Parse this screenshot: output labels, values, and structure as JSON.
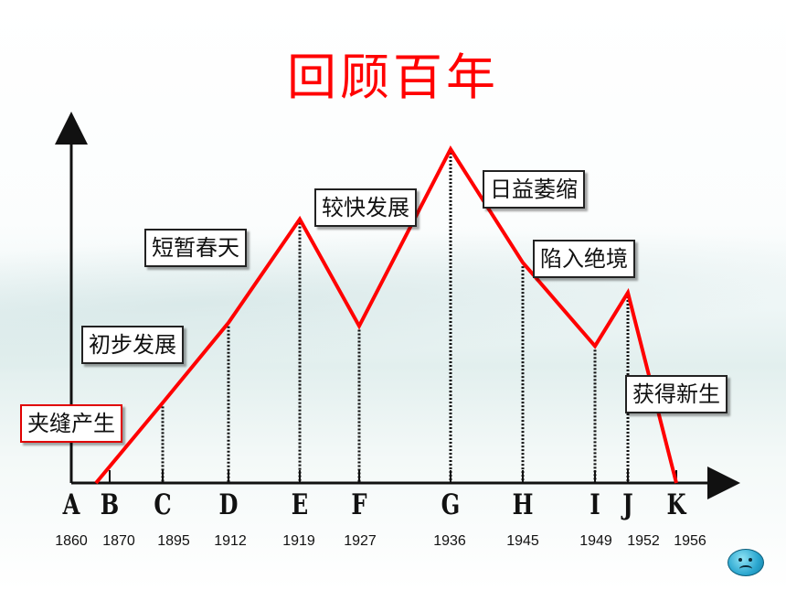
{
  "title": "回顾百年",
  "timeline": [
    {
      "letter": "A",
      "year": "1860",
      "level": 0
    },
    {
      "letter": "B",
      "year": "1870",
      "level": 0.03
    },
    {
      "letter": "C",
      "year": "1895",
      "level": 0.24
    },
    {
      "letter": "D",
      "year": "1912",
      "level": 0.48
    },
    {
      "letter": "E",
      "year": "1919",
      "level": 0.79
    },
    {
      "letter": "F",
      "year": "1927",
      "level": 0.47
    },
    {
      "letter": "G",
      "year": "1936",
      "level": 1.0
    },
    {
      "letter": "H",
      "year": "1945",
      "level": 0.66
    },
    {
      "letter": "I",
      "year": "1949",
      "level": 0.41
    },
    {
      "letter": "J",
      "year": "1952",
      "level": 0.57
    },
    {
      "letter": "K",
      "year": "1956",
      "level": 0
    }
  ],
  "labels": [
    {
      "text": "夹缝产生",
      "style": "red"
    },
    {
      "text": "初步发展",
      "style": "plain"
    },
    {
      "text": "短暂春天",
      "style": "plain"
    },
    {
      "text": "较快发展",
      "style": "plain"
    },
    {
      "text": "日益萎缩",
      "style": "plain"
    },
    {
      "text": "陷入绝境",
      "style": "plain"
    },
    {
      "text": "获得新生",
      "style": "plain"
    }
  ],
  "colors": {
    "title": "#ff0000",
    "line": "#ff0000",
    "axis": "#111111"
  },
  "icon": "sad-face-icon"
}
